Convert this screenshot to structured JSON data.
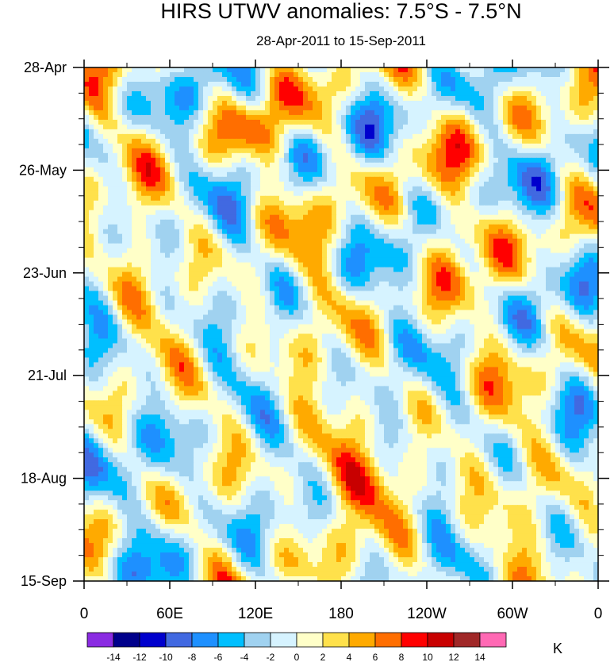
{
  "chart_data": {
    "type": "heatmap",
    "title": "HIRS UTWV anomalies: 7.5°S - 7.5°N",
    "subtitle": "28-Apr-2011 to 15-Sep-2011",
    "x_ticks": [
      "0",
      "60E",
      "120E",
      "180",
      "120W",
      "60W",
      "0"
    ],
    "x_tick_values": [
      0,
      60,
      120,
      180,
      240,
      300,
      360
    ],
    "xlim": [
      0,
      360
    ],
    "y_ticks": [
      "28-Apr",
      "26-May",
      "23-Jun",
      "21-Jul",
      "18-Aug",
      "15-Sep"
    ],
    "y_tick_values": [
      0,
      28,
      56,
      84,
      112,
      140
    ],
    "ylim": [
      0,
      140
    ],
    "colorbar_labels": [
      "-14",
      "-12",
      "-10",
      "-8",
      "-6",
      "-4",
      "-2",
      "0",
      "2",
      "4",
      "6",
      "8",
      "10",
      "12",
      "14"
    ],
    "colorbar_colors": [
      "#8a2be2",
      "#00008b",
      "#0000cd",
      "#4169e1",
      "#1e90ff",
      "#00bfff",
      "#a0d2f0",
      "#d6f3ff",
      "#ffffc8",
      "#ffe14b",
      "#ffaa00",
      "#ff6e00",
      "#ff0000",
      "#c80000",
      "#a02828",
      "#ff69b4"
    ],
    "colorbar_unit": "K"
  }
}
